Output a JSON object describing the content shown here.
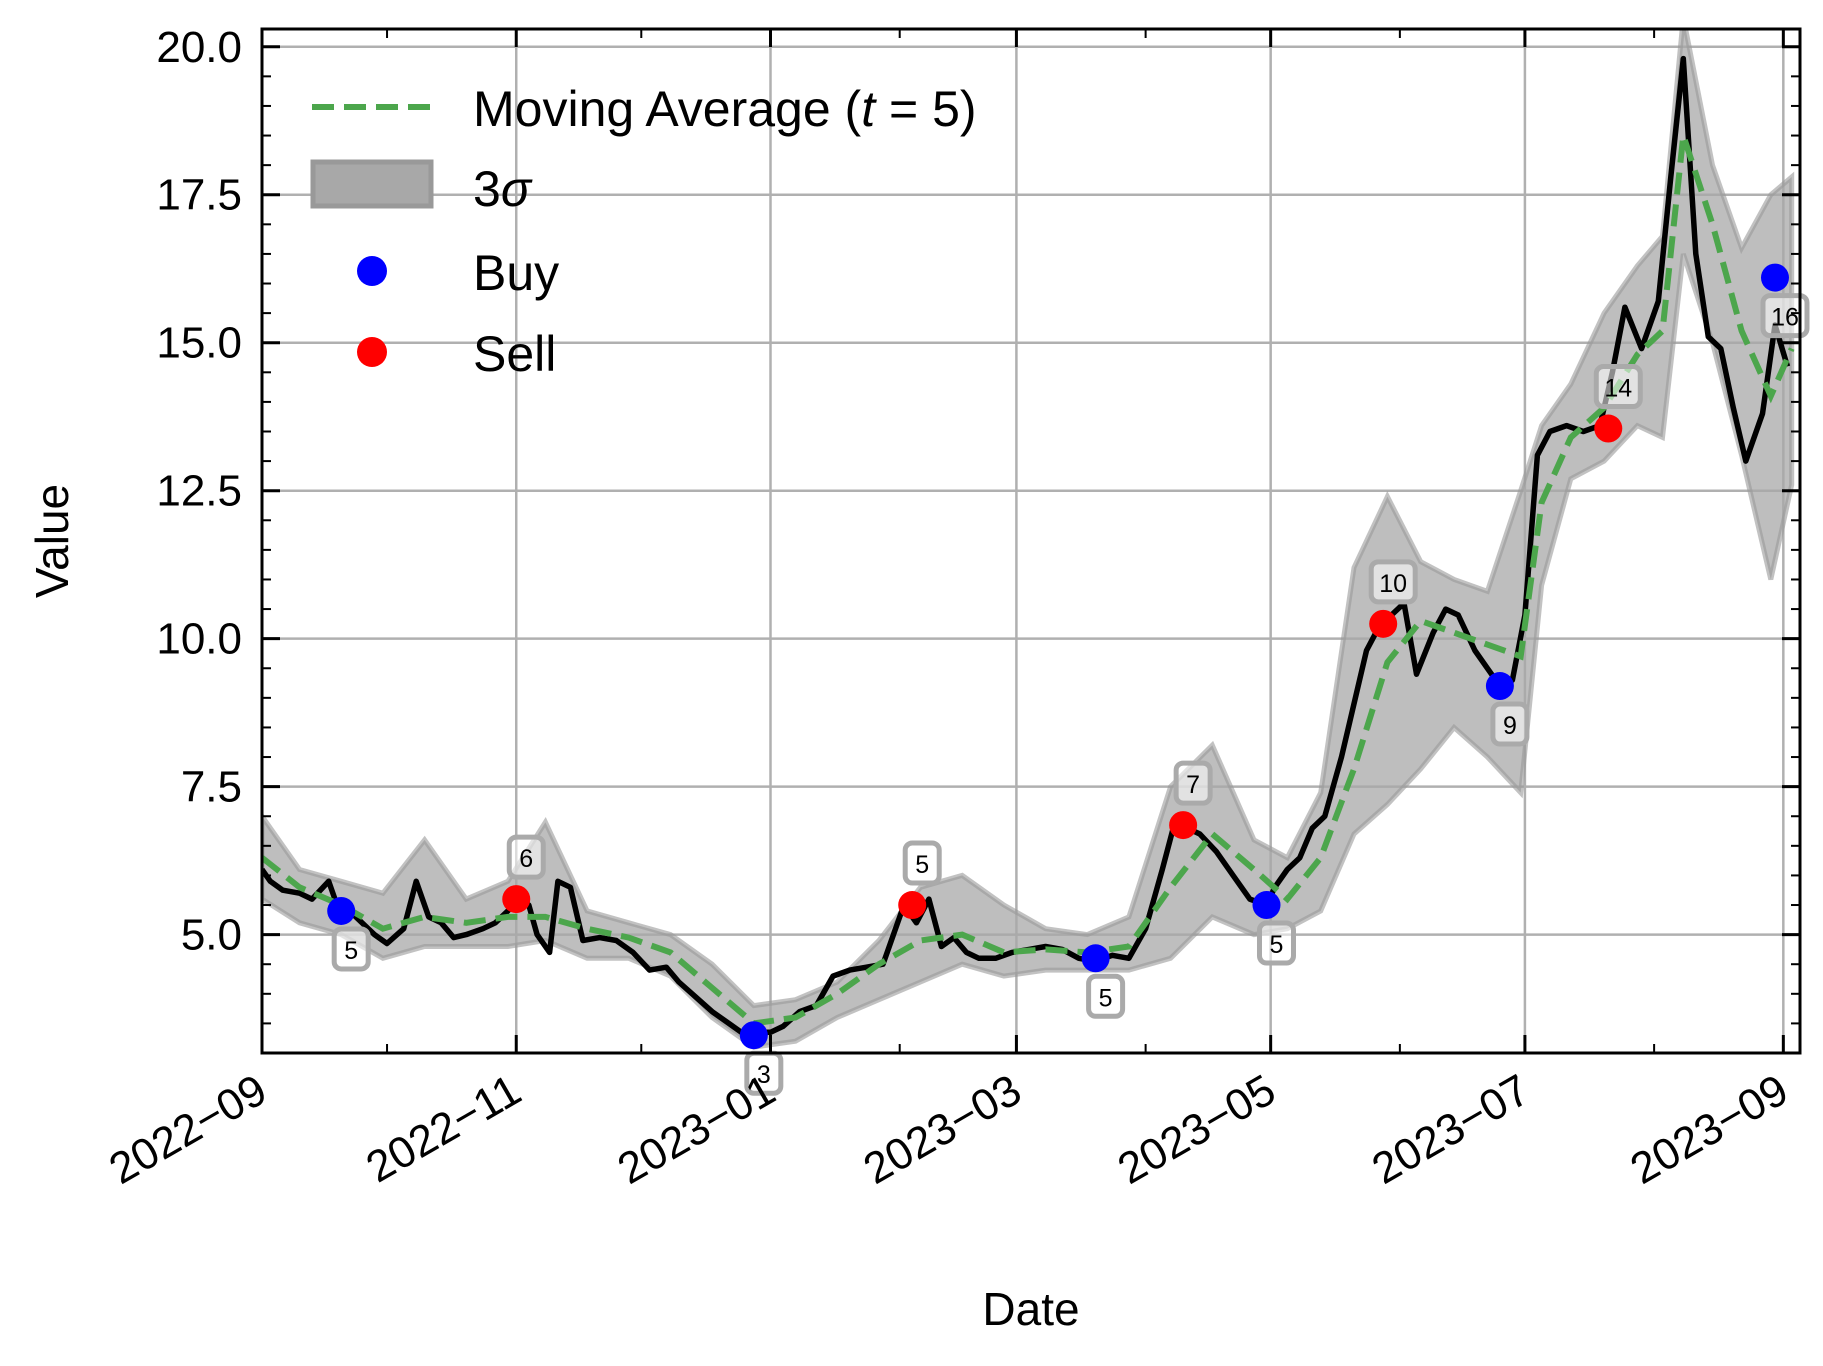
{
  "chart_data": {
    "type": "line",
    "xlabel": "Date",
    "ylabel": "Value",
    "x_tick_labels": [
      "2022−09",
      "2022−11",
      "2023−01",
      "2023−03",
      "2023−05",
      "2023−07",
      "2023−09"
    ],
    "x_tick_dates": [
      "2022-09-01",
      "2022-11-01",
      "2023-01-01",
      "2023-03-01",
      "2023-05-01",
      "2023-07-01",
      "2023-09-01"
    ],
    "xlim": [
      "2022-09-01",
      "2023-09-05"
    ],
    "y_ticks": [
      5.0,
      7.5,
      10.0,
      12.5,
      15.0,
      17.5,
      20.0
    ],
    "y_tick_labels": [
      "5.0",
      "7.5",
      "10.0",
      "12.5",
      "15.0",
      "17.5",
      "20.0"
    ],
    "ylim": [
      3.0,
      20.3
    ],
    "grid": true,
    "legend": {
      "placement": "top-left",
      "entries": [
        {
          "label_prefix": "Moving Average (",
          "label_italic": "t",
          "label_suffix": " = 5)",
          "style": "dashed-line",
          "color": "#4ca64c"
        },
        {
          "label_prefix": "3",
          "label_italic": "σ",
          "label_suffix": "",
          "style": "band",
          "color": "#a8a8a8"
        },
        {
          "label_prefix": "Buy",
          "label_italic": "",
          "label_suffix": "",
          "style": "marker",
          "color": "#0000ff"
        },
        {
          "label_prefix": "Sell",
          "label_italic": "",
          "label_suffix": "",
          "style": "marker",
          "color": "#ff0000"
        }
      ]
    },
    "colors": {
      "price": "#000000",
      "moving_average": "#4ca64c",
      "band": "#a8a8a8",
      "buy": "#0000ff",
      "sell": "#ff0000"
    },
    "series": [
      {
        "kind": "price",
        "x": [
          "2022-09-01",
          "2022-09-03",
          "2022-09-06",
          "2022-09-10",
          "2022-09-13",
          "2022-09-17",
          "2022-09-19",
          "2022-09-22",
          "2022-09-25",
          "2022-09-28",
          "2022-10-01",
          "2022-10-05",
          "2022-10-08",
          "2022-10-11",
          "2022-10-14",
          "2022-10-17",
          "2022-10-20",
          "2022-10-24",
          "2022-10-27",
          "2022-10-30",
          "2022-11-01",
          "2022-11-04",
          "2022-11-06",
          "2022-11-09",
          "2022-11-11",
          "2022-11-14",
          "2022-11-17",
          "2022-11-21",
          "2022-11-25",
          "2022-11-29",
          "2022-12-03",
          "2022-12-07",
          "2022-12-10",
          "2022-12-14",
          "2022-12-18",
          "2022-12-22",
          "2022-12-26",
          "2022-12-29",
          "2023-01-01",
          "2023-01-04",
          "2023-01-08",
          "2023-01-12",
          "2023-01-16",
          "2023-01-20",
          "2023-01-24",
          "2023-01-28",
          "2023-02-02",
          "2023-02-05",
          "2023-02-08",
          "2023-02-11",
          "2023-02-14",
          "2023-02-17",
          "2023-02-20",
          "2023-02-24",
          "2023-02-28",
          "2023-03-04",
          "2023-03-08",
          "2023-03-12",
          "2023-03-16",
          "2023-03-20",
          "2023-03-24",
          "2023-03-28",
          "2023-04-01",
          "2023-04-05",
          "2023-04-08",
          "2023-04-11",
          "2023-04-14",
          "2023-04-18",
          "2023-04-22",
          "2023-04-26",
          "2023-04-30",
          "2023-05-02",
          "2023-05-05",
          "2023-05-08",
          "2023-05-11",
          "2023-05-14",
          "2023-05-18",
          "2023-05-21",
          "2023-05-24",
          "2023-05-27",
          "2023-05-30",
          "2023-06-02",
          "2023-06-05",
          "2023-06-09",
          "2023-06-12",
          "2023-06-15",
          "2023-06-19",
          "2023-06-22",
          "2023-06-25",
          "2023-06-28",
          "2023-07-01",
          "2023-07-04",
          "2023-07-07",
          "2023-07-11",
          "2023-07-15",
          "2023-07-19",
          "2023-07-22",
          "2023-07-25",
          "2023-07-29",
          "2023-08-02",
          "2023-08-05",
          "2023-08-08",
          "2023-08-11",
          "2023-08-14",
          "2023-08-17",
          "2023-08-20",
          "2023-08-23",
          "2023-08-27",
          "2023-08-30",
          "2023-09-02"
        ],
        "y": [
          6.1,
          5.9,
          5.75,
          5.7,
          5.6,
          5.9,
          5.5,
          5.4,
          5.2,
          5.0,
          4.85,
          5.1,
          5.9,
          5.3,
          5.2,
          4.95,
          5.0,
          5.1,
          5.2,
          5.4,
          5.6,
          5.5,
          5.0,
          4.7,
          5.9,
          5.8,
          4.9,
          4.95,
          4.9,
          4.7,
          4.4,
          4.45,
          4.2,
          3.95,
          3.7,
          3.5,
          3.3,
          3.35,
          3.35,
          3.45,
          3.7,
          3.8,
          4.3,
          4.4,
          4.45,
          4.5,
          5.5,
          5.2,
          5.6,
          4.8,
          4.95,
          4.7,
          4.6,
          4.6,
          4.7,
          4.75,
          4.8,
          4.75,
          4.6,
          4.55,
          4.65,
          4.6,
          5.1,
          6.1,
          6.9,
          6.8,
          6.7,
          6.4,
          6.0,
          5.6,
          5.5,
          5.8,
          6.1,
          6.3,
          6.8,
          7.0,
          8.0,
          8.9,
          9.8,
          10.2,
          10.4,
          10.6,
          9.4,
          10.1,
          10.5,
          10.4,
          9.8,
          9.5,
          9.2,
          9.3,
          10.4,
          13.1,
          13.5,
          13.6,
          13.5,
          13.6,
          14.5,
          15.6,
          14.9,
          15.7,
          17.8,
          19.8,
          16.5,
          15.1,
          14.9,
          13.9,
          13.0,
          13.8,
          15.3,
          14.6
        ]
      },
      {
        "kind": "moving_average",
        "x": [
          "2022-09-01",
          "2022-09-10",
          "2022-09-20",
          "2022-09-30",
          "2022-10-10",
          "2022-10-20",
          "2022-10-30",
          "2022-11-08",
          "2022-11-18",
          "2022-11-28",
          "2022-12-08",
          "2022-12-18",
          "2022-12-28",
          "2023-01-07",
          "2023-01-17",
          "2023-01-27",
          "2023-02-06",
          "2023-02-16",
          "2023-02-26",
          "2023-03-08",
          "2023-03-18",
          "2023-03-28",
          "2023-04-07",
          "2023-04-17",
          "2023-04-27",
          "2023-05-05",
          "2023-05-13",
          "2023-05-21",
          "2023-05-29",
          "2023-06-06",
          "2023-06-14",
          "2023-06-22",
          "2023-06-30",
          "2023-07-05",
          "2023-07-12",
          "2023-07-20",
          "2023-07-28",
          "2023-08-03",
          "2023-08-08",
          "2023-08-15",
          "2023-08-22",
          "2023-08-29",
          "2023-09-03"
        ],
        "y": [
          6.3,
          5.8,
          5.5,
          5.1,
          5.3,
          5.2,
          5.3,
          5.3,
          5.1,
          4.95,
          4.7,
          4.1,
          3.5,
          3.6,
          4.0,
          4.5,
          4.9,
          5.0,
          4.7,
          4.75,
          4.7,
          4.8,
          5.8,
          6.7,
          6.1,
          5.6,
          6.3,
          7.8,
          9.6,
          10.3,
          10.1,
          9.9,
          9.7,
          12.3,
          13.4,
          13.9,
          14.8,
          15.2,
          18.5,
          17.0,
          15.2,
          14.1,
          14.9
        ]
      }
    ],
    "band_3sigma": {
      "x": [
        "2022-09-01",
        "2022-09-10",
        "2022-09-20",
        "2022-09-30",
        "2022-10-10",
        "2022-10-20",
        "2022-10-30",
        "2022-11-08",
        "2022-11-18",
        "2022-11-28",
        "2022-12-08",
        "2022-12-18",
        "2022-12-28",
        "2023-01-07",
        "2023-01-17",
        "2023-01-27",
        "2023-02-06",
        "2023-02-16",
        "2023-02-26",
        "2023-03-08",
        "2023-03-18",
        "2023-03-28",
        "2023-04-07",
        "2023-04-17",
        "2023-04-27",
        "2023-05-05",
        "2023-05-13",
        "2023-05-21",
        "2023-05-29",
        "2023-06-06",
        "2023-06-14",
        "2023-06-22",
        "2023-06-30",
        "2023-07-05",
        "2023-07-12",
        "2023-07-20",
        "2023-07-28",
        "2023-08-03",
        "2023-08-08",
        "2023-08-15",
        "2023-08-22",
        "2023-08-29",
        "2023-09-03"
      ],
      "upper": [
        7.0,
        6.1,
        5.9,
        5.7,
        6.6,
        5.6,
        5.9,
        6.9,
        5.4,
        5.2,
        5.0,
        4.5,
        3.8,
        3.9,
        4.2,
        4.9,
        5.8,
        6.0,
        5.5,
        5.1,
        5.0,
        5.3,
        7.5,
        8.2,
        6.6,
        6.3,
        7.4,
        11.2,
        12.4,
        11.3,
        11.0,
        10.8,
        12.5,
        13.6,
        14.3,
        15.5,
        16.3,
        16.8,
        20.5,
        18.0,
        16.6,
        17.5,
        17.8
      ],
      "lower": [
        5.6,
        5.2,
        5.0,
        4.6,
        4.8,
        4.8,
        4.8,
        4.9,
        4.6,
        4.6,
        4.3,
        3.6,
        3.1,
        3.2,
        3.6,
        3.9,
        4.2,
        4.5,
        4.3,
        4.4,
        4.4,
        4.4,
        4.6,
        5.3,
        5.0,
        5.1,
        5.4,
        6.7,
        7.2,
        7.8,
        8.5,
        8.0,
        7.4,
        10.9,
        12.7,
        13.0,
        13.6,
        13.4,
        16.5,
        15.0,
        13.1,
        11.0,
        12.6
      ]
    },
    "buy_points": [
      {
        "x": "2022-09-20",
        "y": 5.4,
        "label": "5"
      },
      {
        "x": "2022-12-28",
        "y": 3.3,
        "label": "3"
      },
      {
        "x": "2023-03-20",
        "y": 4.6,
        "label": "5"
      },
      {
        "x": "2023-04-30",
        "y": 5.5,
        "label": "5"
      },
      {
        "x": "2023-06-25",
        "y": 9.2,
        "label": "9"
      },
      {
        "x": "2023-08-30",
        "y": 16.1,
        "label": "16"
      }
    ],
    "sell_points": [
      {
        "x": "2022-11-01",
        "y": 5.6,
        "label": "6"
      },
      {
        "x": "2023-02-04",
        "y": 5.5,
        "label": "5"
      },
      {
        "x": "2023-04-10",
        "y": 6.85,
        "label": "7"
      },
      {
        "x": "2023-05-28",
        "y": 10.25,
        "label": "10"
      },
      {
        "x": "2023-07-21",
        "y": 13.55,
        "label": "14"
      }
    ]
  }
}
